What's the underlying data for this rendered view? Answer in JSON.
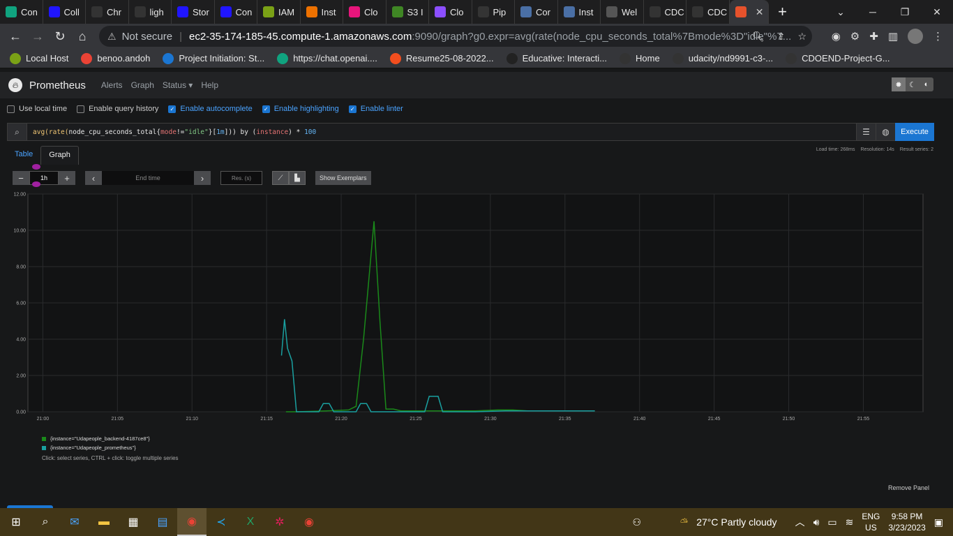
{
  "browser": {
    "tabs": [
      {
        "label": "Con",
        "icon": "chatgpt-icon",
        "color": "#10a37f"
      },
      {
        "label": "Coll",
        "icon": "udacity-icon",
        "color": "#2015ff"
      },
      {
        "label": "Chr",
        "icon": "github-icon",
        "color": "#333333"
      },
      {
        "label": "ligh",
        "icon": "github-icon",
        "color": "#333333"
      },
      {
        "label": "Stor",
        "icon": "udacity-icon",
        "color": "#2015ff"
      },
      {
        "label": "Con",
        "icon": "udacity-icon",
        "color": "#2015ff"
      },
      {
        "label": "IAM",
        "icon": "aws-iam-icon",
        "color": "#7aa116"
      },
      {
        "label": "Inst",
        "icon": "aws-ec2-icon",
        "color": "#ed7100"
      },
      {
        "label": "Clo",
        "icon": "aws-cloudformation-icon",
        "color": "#e7157b"
      },
      {
        "label": "S3 I",
        "icon": "aws-s3-icon",
        "color": "#3f8624"
      },
      {
        "label": "Clo",
        "icon": "aws-cloudfront-icon",
        "color": "#8c4fff"
      },
      {
        "label": "Pip",
        "icon": "circleci-icon",
        "color": "#343434"
      },
      {
        "label": "Cor",
        "icon": "docs-icon",
        "color": "#4a6fa5"
      },
      {
        "label": "Inst",
        "icon": "docs-icon",
        "color": "#4a6fa5"
      },
      {
        "label": "Wel",
        "icon": "globe-icon",
        "color": "#555555"
      },
      {
        "label": "CDC",
        "icon": "github-icon",
        "color": "#333333"
      },
      {
        "label": "CDC",
        "icon": "github-icon",
        "color": "#333333"
      },
      {
        "label": "",
        "icon": "prometheus-icon",
        "color": "#e6522c"
      }
    ],
    "new_tab": "+",
    "minimize": "⌄",
    "url_warning": "Not secure",
    "url_host": "ec2-35-174-185-45.compute-1.amazonaws.com",
    "url_path": ":9090/graph?g0.expr=avg(rate(node_cpu_seconds_total%7Bmode%3D\"idle\"%7...",
    "bookmarks": [
      {
        "label": "Local Host",
        "icon": "globe-icon",
        "color": "#7aa116"
      },
      {
        "label": "benoo.andoh",
        "icon": "gmail-icon",
        "color": "#ea4335"
      },
      {
        "label": "Project Initiation: St...",
        "icon": "c-icon",
        "color": "#1b76d2"
      },
      {
        "label": "https://chat.openai....",
        "icon": "chatgpt-icon",
        "color": "#10a37f"
      },
      {
        "label": "Resume25-08-2022...",
        "icon": "figma-icon",
        "color": "#f24e1e"
      },
      {
        "label": "Educative: Interacti...",
        "icon": "terminal-icon",
        "color": "#222222"
      },
      {
        "label": "Home",
        "icon": "ofx-icon",
        "color": "#333333"
      },
      {
        "label": "udacity/nd9991-c3-...",
        "icon": "github-icon",
        "color": "#333333"
      },
      {
        "label": "CDOEND-Project-G...",
        "icon": "github-icon",
        "color": "#333333"
      }
    ]
  },
  "prometheus": {
    "brand": "Prometheus",
    "nav": [
      "Alerts",
      "Graph",
      "Status ▾",
      "Help"
    ],
    "options": [
      {
        "label": "Use local time",
        "checked": false
      },
      {
        "label": "Enable query history",
        "checked": false
      },
      {
        "label": "Enable autocomplete",
        "checked": true
      },
      {
        "label": "Enable highlighting",
        "checked": true
      },
      {
        "label": "Enable linter",
        "checked": true
      }
    ],
    "query": {
      "p1": "avg(",
      "p2": "rate(",
      "p3": "node_cpu_seconds_total{",
      "p4": "mode",
      "p5": "!=",
      "p6": "\"idle\"",
      "p7": "}[",
      "p8": "1m",
      "p9": "])) by (",
      "p10": "instance",
      "p11": ") * ",
      "p12": "100"
    },
    "execute": "Execute",
    "stats": {
      "load": "Load time: 268ms",
      "resolution": "Resolution: 14s",
      "series": "Result series: 2"
    },
    "tabs": {
      "table": "Table",
      "graph": "Graph"
    },
    "controls": {
      "minus": "−",
      "plus": "+",
      "range": "1h",
      "prev": "‹",
      "end_time_placeholder": "End time",
      "next": "›",
      "res_placeholder": "Res. (s)",
      "exemplars": "Show Exemplars"
    },
    "legend": [
      {
        "label": "{instance=\"Udapeople_backend-4187ce8\"}",
        "color": "#1a8a1a"
      },
      {
        "label": "{instance=\"Udapeople_prometheus\"}",
        "color": "#1aa0a0"
      }
    ],
    "legend_hint": "Click: select series, CTRL + click: toggle multiple series",
    "remove_panel": "Remove Panel"
  },
  "chart_data": {
    "type": "line",
    "ylim": [
      0,
      12
    ],
    "yticks": [
      "12.00",
      "10.00",
      "8.00",
      "6.00",
      "4.00",
      "2.00",
      "0.00"
    ],
    "xticks": [
      "21:00",
      "21:05",
      "21:10",
      "21:15",
      "21:20",
      "21:25",
      "21:30",
      "21:35",
      "21:40",
      "21:45",
      "21:50",
      "21:55"
    ],
    "xlim_minutes": [
      20.0,
      80.0
    ],
    "series": [
      {
        "name": "{instance=\"Udapeople_backend-4187ce8\"}",
        "color": "#1a8a1a",
        "x": [
          37.3,
          38.0,
          40.0,
          41.5,
          42.0,
          42.5,
          43.2,
          43.6,
          44.0,
          44.5,
          45.0,
          47.0,
          50.0,
          51.5,
          52.5,
          53.5,
          55.0,
          58.0
        ],
        "y": [
          0.0,
          0.0,
          0.05,
          0.1,
          0.3,
          4.0,
          10.5,
          5.0,
          0.15,
          0.15,
          0.05,
          0.05,
          0.05,
          0.1,
          0.1,
          0.05,
          0.05,
          0.05
        ]
      },
      {
        "name": "{instance=\"Udapeople_prometheus\"}",
        "color": "#1aa0a0",
        "x": [
          37.0,
          37.2,
          37.4,
          37.7,
          38.0,
          39.5,
          39.8,
          40.2,
          40.5,
          42.0,
          42.3,
          42.7,
          43.0,
          46.6,
          46.9,
          47.5,
          47.8,
          50.0,
          52.0,
          58.0
        ],
        "y": [
          3.1,
          5.1,
          3.5,
          2.8,
          0.0,
          0.0,
          0.45,
          0.45,
          0.0,
          0.0,
          0.45,
          0.45,
          0.0,
          0.0,
          0.85,
          0.85,
          0.0,
          0.0,
          0.05,
          0.05
        ]
      }
    ]
  },
  "taskbar": {
    "weather": "27°C  Partly cloudy",
    "lang1": "ENG",
    "lang2": "US",
    "time": "9:58 PM",
    "date": "3/23/2023"
  }
}
